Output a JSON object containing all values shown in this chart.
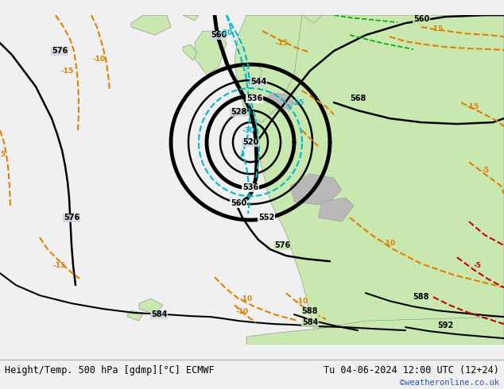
{
  "title_left": "Height/Temp. 500 hPa [gdmp][°C] ECMWF",
  "title_right": "Tu 04-06-2024 12:00 UTC (12+24)",
  "credit": "©weatheronline.co.uk",
  "bg_ocean_color": "#d0d4dc",
  "bg_land_color": "#c8e8b0",
  "bg_mountain_color": "#b8b8b8",
  "bottom_bar_color": "#f0f0f0",
  "credit_color": "#2255bb",
  "height_color": "#000000",
  "temp_orange_color": "#e08000",
  "temp_cyan_color": "#00b8cc",
  "temp_red_color": "#cc0000",
  "temp_green_color": "#00aa00",
  "coast_color": "#888888"
}
